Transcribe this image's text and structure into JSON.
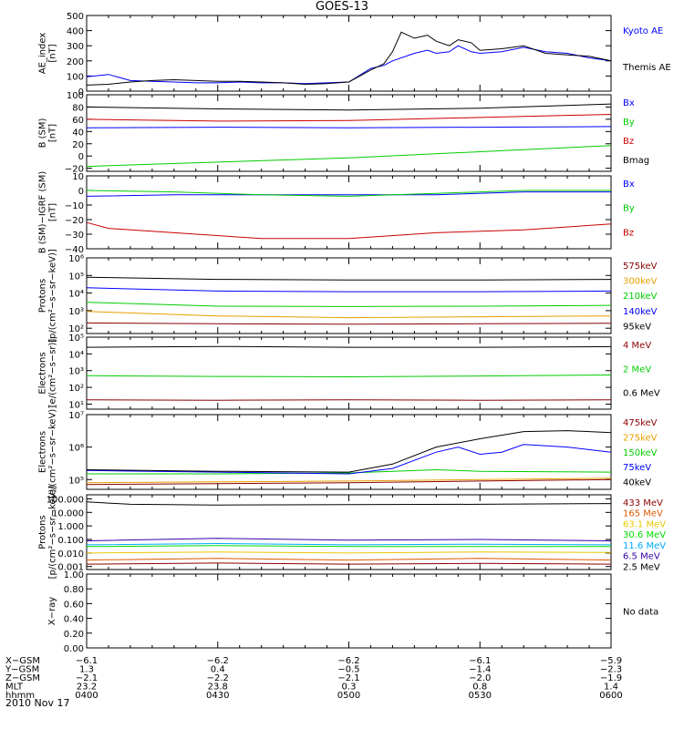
{
  "title": "GOES-13",
  "date_label": "2010 Nov 17",
  "chart_data": [
    {
      "type": "line",
      "id": "ae",
      "ylabel": "AE_index\n[nT]",
      "yscale": "linear",
      "ylim": [
        0,
        500
      ],
      "yticks": [
        0,
        100,
        200,
        300,
        400,
        500
      ],
      "ytick_labels": [
        "0",
        "100",
        "200",
        "300",
        "400",
        "500"
      ],
      "xlim": [
        0,
        120
      ],
      "series": [
        {
          "name": "Kyoto AE",
          "color": "#0000ff",
          "x": [
            0,
            5,
            10,
            15,
            20,
            25,
            30,
            35,
            40,
            45,
            50,
            55,
            60,
            65,
            68,
            70,
            75,
            78,
            80,
            83,
            85,
            88,
            90,
            95,
            100,
            105,
            110,
            115,
            120
          ],
          "y": [
            95,
            110,
            70,
            65,
            60,
            55,
            55,
            60,
            55,
            55,
            50,
            55,
            60,
            150,
            170,
            200,
            250,
            270,
            250,
            260,
            300,
            260,
            250,
            260,
            290,
            260,
            250,
            220,
            200
          ]
        },
        {
          "name": "Themis AE",
          "color": "#000000",
          "x": [
            0,
            5,
            10,
            15,
            20,
            25,
            30,
            35,
            40,
            45,
            50,
            55,
            60,
            65,
            68,
            70,
            72,
            75,
            78,
            80,
            83,
            85,
            88,
            90,
            95,
            100,
            105,
            110,
            115,
            120
          ],
          "y": [
            40,
            45,
            60,
            70,
            75,
            70,
            65,
            65,
            60,
            55,
            45,
            50,
            60,
            140,
            180,
            260,
            390,
            350,
            370,
            330,
            300,
            340,
            320,
            270,
            280,
            300,
            250,
            240,
            230,
            200
          ]
        }
      ]
    },
    {
      "type": "line",
      "id": "bsm",
      "ylabel": "B (SM)\n[nT]",
      "yscale": "linear",
      "ylim": [
        -25,
        100
      ],
      "yticks": [
        -20,
        0,
        20,
        40,
        60,
        80,
        100
      ],
      "ytick_labels": [
        "−20",
        "0",
        "20",
        "40",
        "60",
        "80",
        "100"
      ],
      "xlim": [
        0,
        120
      ],
      "series": [
        {
          "name": "Bx",
          "color": "#0000ff",
          "x": [
            0,
            30,
            60,
            90,
            120
          ],
          "y": [
            46,
            47,
            46,
            47,
            48
          ]
        },
        {
          "name": "By",
          "color": "#00cc00",
          "x": [
            0,
            30,
            60,
            90,
            120
          ],
          "y": [
            -17,
            -10,
            -3,
            7,
            17
          ]
        },
        {
          "name": "Bz",
          "color": "#cc0000",
          "x": [
            0,
            30,
            60,
            90,
            120
          ],
          "y": [
            60,
            57,
            58,
            63,
            68
          ]
        },
        {
          "name": "Bmag",
          "color": "#000000",
          "x": [
            0,
            30,
            60,
            90,
            120
          ],
          "y": [
            80,
            77,
            75,
            78,
            85
          ]
        }
      ]
    },
    {
      "type": "line",
      "id": "bdiff",
      "ylabel": "B (SM)−IGRF (SM)\n[nT]",
      "yscale": "linear",
      "ylim": [
        -40,
        10
      ],
      "yticks": [
        -40,
        -30,
        -20,
        -10,
        0,
        10
      ],
      "ytick_labels": [
        "−40",
        "−30",
        "−20",
        "−10",
        "0",
        "10"
      ],
      "xlim": [
        0,
        120
      ],
      "series": [
        {
          "name": "Bx",
          "color": "#0000ff",
          "x": [
            0,
            20,
            40,
            60,
            80,
            100,
            120
          ],
          "y": [
            -4,
            -3,
            -3,
            -3,
            -3,
            -1,
            -1
          ]
        },
        {
          "name": "By",
          "color": "#00cc00",
          "x": [
            0,
            20,
            40,
            60,
            80,
            100,
            120
          ],
          "y": [
            0,
            -1,
            -3,
            -4,
            -2,
            0,
            0
          ]
        },
        {
          "name": "Bz",
          "color": "#cc0000",
          "x": [
            0,
            5,
            20,
            40,
            60,
            80,
            100,
            120
          ],
          "y": [
            -22,
            -26,
            -29,
            -33,
            -33,
            -29,
            -27,
            -23
          ]
        }
      ]
    },
    {
      "type": "line",
      "id": "protons",
      "ylabel": "Protons\n[p/(cm²−s−sr−keV)]",
      "yscale": "log",
      "ylim": [
        50,
        1000000
      ],
      "yticks": [
        100,
        1000,
        10000,
        100000,
        1000000
      ],
      "ytick_labels": [
        "10²",
        "10³",
        "10⁴",
        "10⁵",
        "10⁶"
      ],
      "xlim": [
        0,
        120
      ],
      "series": [
        {
          "name": "575keV",
          "color": "#8b0000",
          "x": [
            0,
            30,
            60,
            90,
            120
          ],
          "y": [
            200,
            180,
            170,
            180,
            190
          ]
        },
        {
          "name": "300keV",
          "color": "#e6a000",
          "x": [
            0,
            30,
            60,
            90,
            120
          ],
          "y": [
            900,
            500,
            400,
            450,
            500
          ]
        },
        {
          "name": "210keV",
          "color": "#00cc00",
          "x": [
            0,
            30,
            60,
            90,
            120
          ],
          "y": [
            3000,
            1800,
            1700,
            1800,
            2000
          ]
        },
        {
          "name": "140keV",
          "color": "#0000ff",
          "x": [
            0,
            30,
            60,
            90,
            120
          ],
          "y": [
            20000,
            13000,
            12000,
            12000,
            13000
          ]
        },
        {
          "name": "95keV",
          "color": "#000000",
          "x": [
            0,
            30,
            60,
            90,
            120
          ],
          "y": [
            80000,
            60000,
            55000,
            55000,
            60000
          ]
        }
      ]
    },
    {
      "type": "line",
      "id": "electrons_mev",
      "ylabel": "Electrons\n[e/(cm²−s−sr)]",
      "yscale": "log",
      "ylim": [
        5,
        100000
      ],
      "yticks": [
        10,
        100,
        1000,
        10000,
        100000
      ],
      "ytick_labels": [
        "10¹",
        "10²",
        "10³",
        "10⁴",
        "10⁵"
      ],
      "xlim": [
        0,
        120
      ],
      "series": [
        {
          "name": "4 MeV",
          "color": "#8b0000",
          "x": [
            0,
            30,
            60,
            90,
            120
          ],
          "y": [
            18,
            17,
            18,
            17,
            18
          ]
        },
        {
          "name": "2 MeV",
          "color": "#00cc00",
          "x": [
            0,
            30,
            60,
            90,
            120
          ],
          "y": [
            500,
            450,
            430,
            480,
            550
          ]
        },
        {
          "name": "0.6 MeV",
          "color": "#000000",
          "x": [
            0,
            30,
            60,
            90,
            120
          ],
          "y": [
            25000,
            28000,
            25000,
            25000,
            27000
          ]
        }
      ]
    },
    {
      "type": "line",
      "id": "electrons_kev",
      "ylabel": "Electrons\n[e/(cm²−s−sr−keV)]",
      "yscale": "log",
      "ylim": [
        50000,
        10000000
      ],
      "yticks": [
        100000,
        1000000,
        10000000
      ],
      "ytick_labels": [
        "10⁵",
        "10⁶",
        "10⁷"
      ],
      "xlim": [
        0,
        120
      ],
      "series": [
        {
          "name": "475keV",
          "color": "#8b0000",
          "x": [
            0,
            30,
            60,
            90,
            120
          ],
          "y": [
            70000,
            75000,
            80000,
            90000,
            100000
          ]
        },
        {
          "name": "275keV",
          "color": "#e6a000",
          "x": [
            0,
            30,
            60,
            90,
            120
          ],
          "y": [
            80000,
            85000,
            90000,
            100000,
            110000
          ]
        },
        {
          "name": "150keV",
          "color": "#00cc00",
          "x": [
            0,
            30,
            60,
            80,
            90,
            120
          ],
          "y": [
            150000,
            150000,
            160000,
            200000,
            180000,
            170000
          ]
        },
        {
          "name": "75keV",
          "color": "#0000ff",
          "x": [
            0,
            30,
            60,
            70,
            80,
            85,
            90,
            95,
            100,
            110,
            120
          ],
          "y": [
            190000,
            170000,
            150000,
            220000,
            700000,
            1000000,
            600000,
            700000,
            1200000,
            1000000,
            700000
          ]
        },
        {
          "name": "40keV",
          "color": "#000000",
          "x": [
            0,
            30,
            60,
            70,
            80,
            90,
            100,
            110,
            120
          ],
          "y": [
            200000,
            180000,
            170000,
            300000,
            1000000,
            1800000,
            3000000,
            3200000,
            2800000
          ]
        }
      ]
    },
    {
      "type": "line",
      "id": "protons_mev",
      "ylabel": "Protons\n[p/(cm²−s−sr−keV)]",
      "yscale": "log",
      "ylim": [
        0.0006,
        200
      ],
      "yticks": [
        0.001,
        0.01,
        0.1,
        1,
        10,
        100
      ],
      "ytick_labels": [
        "0.001",
        "0.010",
        "0.100",
        "1.000",
        "10.000",
        "100.000"
      ],
      "xlim": [
        0,
        120
      ],
      "series": [
        {
          "name": "433 MeV",
          "color": "#8b0000",
          "x": [
            0,
            30,
            60,
            90,
            120
          ],
          "y": [
            0.0015,
            0.0018,
            0.0015,
            0.0017,
            0.0015
          ]
        },
        {
          "name": "165 MeV",
          "color": "#dd5500",
          "x": [
            0,
            30,
            60,
            90,
            120
          ],
          "y": [
            0.003,
            0.004,
            0.003,
            0.004,
            0.003
          ]
        },
        {
          "name": "63.1 MeV",
          "color": "#e6c800",
          "x": [
            0,
            30,
            60,
            90,
            120
          ],
          "y": [
            0.01,
            0.012,
            0.01,
            0.012,
            0.011
          ]
        },
        {
          "name": "30.6 MeV",
          "color": "#00dd00",
          "x": [
            0,
            30,
            60,
            90,
            120
          ],
          "y": [
            0.03,
            0.035,
            0.03,
            0.03,
            0.03
          ]
        },
        {
          "name": "11.6 MeV",
          "color": "#00aaff",
          "x": [
            0,
            30,
            60,
            90,
            120
          ],
          "y": [
            0.04,
            0.05,
            0.04,
            0.045,
            0.04
          ]
        },
        {
          "name": "6.5 MeV",
          "color": "#3300aa",
          "x": [
            0,
            30,
            60,
            90,
            120
          ],
          "y": [
            0.08,
            0.12,
            0.09,
            0.1,
            0.08
          ]
        },
        {
          "name": "2.5 MeV",
          "color": "#000000",
          "x": [
            0,
            10,
            30,
            60,
            90,
            120
          ],
          "y": [
            60,
            40,
            35,
            38,
            40,
            45
          ]
        }
      ]
    },
    {
      "type": "line",
      "id": "xray",
      "ylabel": "X−ray",
      "yscale": "linear",
      "ylim": [
        0,
        1
      ],
      "yticks": [
        0,
        0.2,
        0.4,
        0.6,
        0.8,
        1.0
      ],
      "ytick_labels": [
        "0.00",
        "0.20",
        "0.40",
        "0.60",
        "0.80",
        "1.00"
      ],
      "xlim": [
        0,
        120
      ],
      "note": "No data",
      "series": []
    }
  ],
  "ephemeris": {
    "row_labels": [
      "X−GSM",
      "Y−GSM",
      "Z−GSM",
      "MLT",
      "hhmm"
    ],
    "columns": [
      {
        "x": 0,
        "values": [
          "−6.1",
          "1.3",
          "−2.1",
          "23.2",
          "0400"
        ]
      },
      {
        "x": 30,
        "values": [
          "−6.2",
          "0.4",
          "−2.2",
          "23.8",
          "0430"
        ]
      },
      {
        "x": 60,
        "values": [
          "−6.2",
          "−0.5",
          "−2.1",
          "0.3",
          "0500"
        ]
      },
      {
        "x": 90,
        "values": [
          "−6.1",
          "−1.4",
          "−2.0",
          "0.8",
          "0530"
        ]
      },
      {
        "x": 120,
        "values": [
          "−5.9",
          "−2.3",
          "−1.9",
          "1.4",
          "0600"
        ]
      }
    ]
  }
}
